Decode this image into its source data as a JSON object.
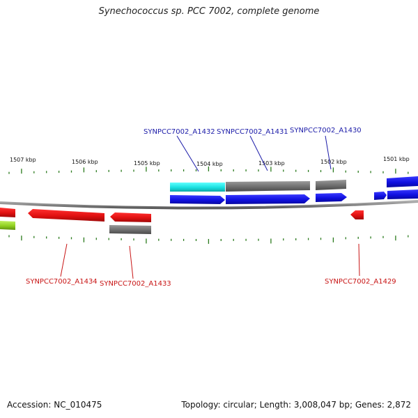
{
  "title": "Synechococcus sp. PCC 7002, complete genome",
  "footer": {
    "accession": "Accession: NC_010475",
    "stats": "Topology: circular; Length: 3,008,047 bp; Genes: 2,872"
  },
  "colors": {
    "backbone": "#8c8c8c",
    "tick": "#2a7a1c",
    "forward_gene": "#1010e8",
    "reverse_gene": "#e01010",
    "rna": "#707070",
    "highlight": "#18e8e8",
    "partial": "#90d020",
    "label_forward": "#1a1aa8",
    "label_reverse": "#c81414"
  },
  "ticks": [
    {
      "label": "1507 kbp"
    },
    {
      "label": "1506 kbp"
    },
    {
      "label": "1505 kbp"
    },
    {
      "label": "1504 kbp"
    },
    {
      "label": "1503 kbp"
    },
    {
      "label": "1502 kbp"
    },
    {
      "label": "1501 kbp"
    }
  ],
  "gene_labels": {
    "A1432": "SYNPCC7002_A1432",
    "A1431": "SYNPCC7002_A1431",
    "A1430": "SYNPCC7002_A1430",
    "A1434": "SYNPCC7002_A1434",
    "A1433": "SYNPCC7002_A1433",
    "A1429": "SYNPCC7002_A1429"
  }
}
